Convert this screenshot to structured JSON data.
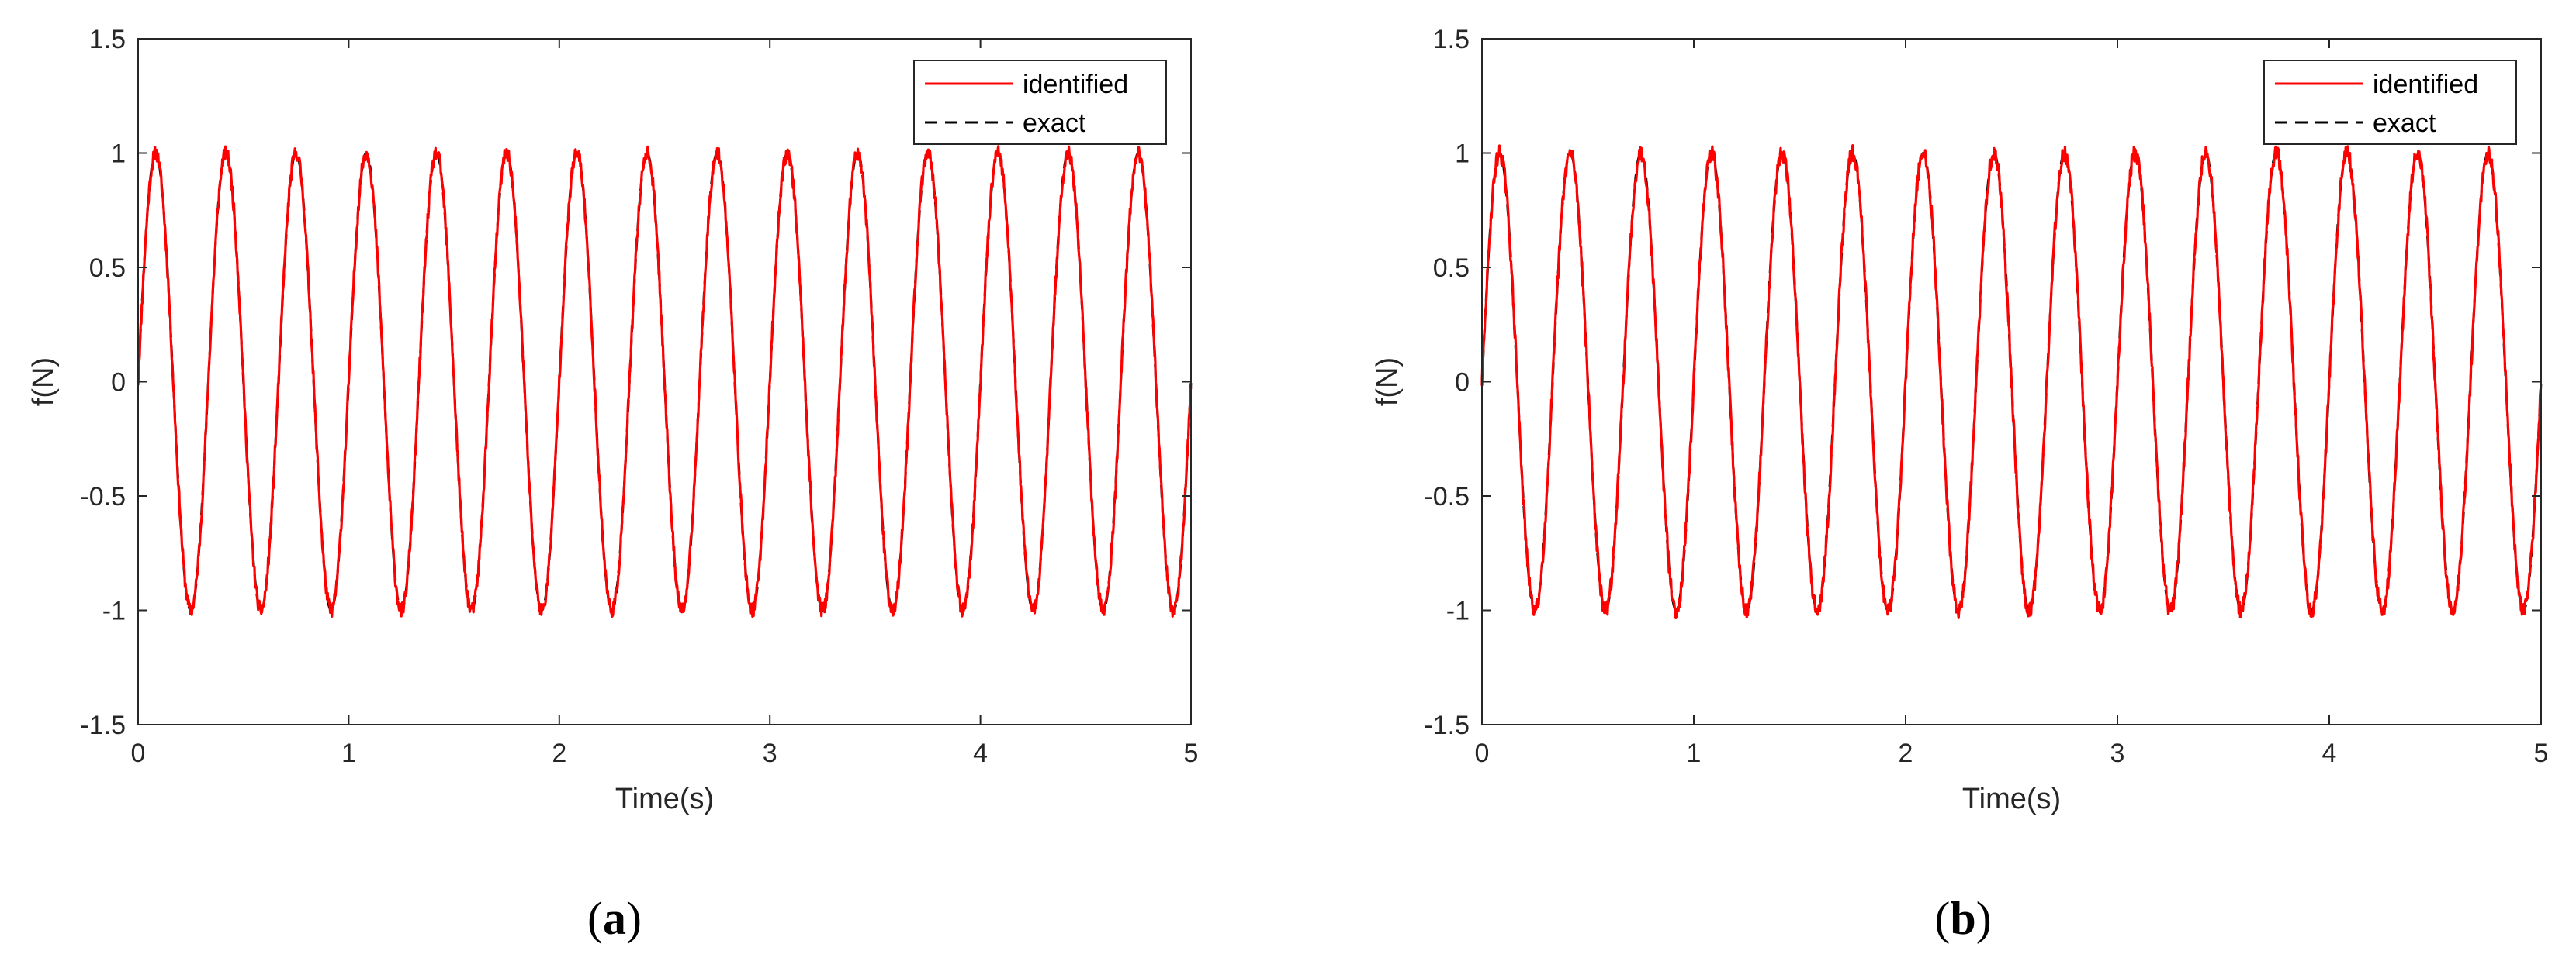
{
  "chart_data": [
    {
      "type": "line",
      "caption_letter": "a",
      "xlabel": "Time(s)",
      "ylabel": "f(N)",
      "xlim": [
        0,
        5
      ],
      "ylim": [
        -1.5,
        1.5
      ],
      "xticks": [
        0,
        1,
        2,
        3,
        4,
        5
      ],
      "yticks": [
        -1.5,
        -1,
        -0.5,
        0,
        0.5,
        1,
        1.5
      ],
      "xtick_labels": [
        "0",
        "1",
        "2",
        "3",
        "4",
        "5"
      ],
      "ytick_labels": [
        "-1.5",
        "-1",
        "-0.5",
        "0",
        "0.5",
        "1",
        "1.5"
      ],
      "grid": false,
      "legend_position": "top-right",
      "signal": {
        "function": "sine",
        "amplitude": 1,
        "frequency_hz": 3,
        "t_start": 0,
        "t_end": 5
      },
      "series": [
        {
          "name": "identified",
          "color": "#ff0000",
          "style": "solid",
          "noise_level": 0.03,
          "noise_seed": 11
        },
        {
          "name": "exact",
          "color": "#000000",
          "style": "dashed"
        }
      ]
    },
    {
      "type": "line",
      "caption_letter": "b",
      "xlabel": "Time(s)",
      "ylabel": "f(N)",
      "xlim": [
        0,
        5
      ],
      "ylim": [
        -1.5,
        1.5
      ],
      "xticks": [
        0,
        1,
        2,
        3,
        4,
        5
      ],
      "yticks": [
        -1.5,
        -1,
        -0.5,
        0,
        0.5,
        1,
        1.5
      ],
      "xtick_labels": [
        "0",
        "1",
        "2",
        "3",
        "4",
        "5"
      ],
      "ytick_labels": [
        "-1.5",
        "-1",
        "-0.5",
        "0",
        "0.5",
        "1",
        "1.5"
      ],
      "grid": false,
      "legend_position": "top-right",
      "signal": {
        "function": "sine",
        "amplitude": 1,
        "frequency_hz": 3,
        "t_start": 0,
        "t_end": 5
      },
      "series": [
        {
          "name": "identified",
          "color": "#ff0000",
          "style": "solid",
          "noise_level": 0.035,
          "noise_seed": 29
        },
        {
          "name": "exact",
          "color": "#000000",
          "style": "dashed"
        }
      ]
    }
  ]
}
